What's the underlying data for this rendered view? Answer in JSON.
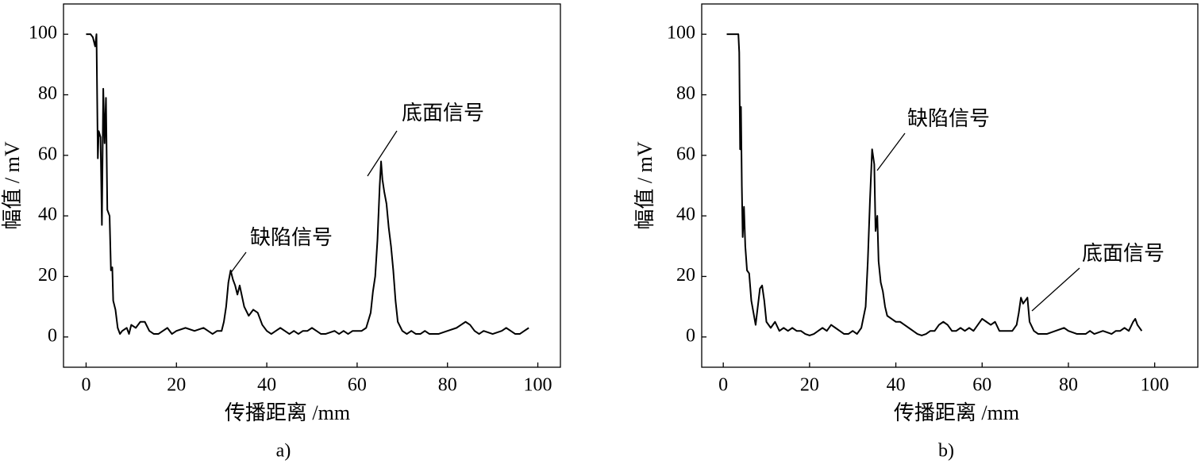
{
  "chart_data": [
    {
      "type": "line",
      "caption": "a)",
      "x_label": "传播距离 /mm",
      "y_label": "幅值 / mV",
      "color": "#000000",
      "xlim": [
        -5,
        105
      ],
      "ylim": [
        -10,
        110
      ],
      "xticks": [
        0,
        20,
        40,
        60,
        80,
        100
      ],
      "yticks": [
        0,
        20,
        40,
        60,
        80,
        100
      ],
      "annotations": [
        "底面信号",
        "缺陷信号"
      ],
      "x": [
        0,
        1,
        1.5,
        2,
        2.3,
        2.6,
        2.8,
        3.2,
        3.5,
        3.8,
        4.1,
        4.4,
        4.7,
        5.2,
        5.5,
        5.8,
        6,
        6.5,
        7,
        7.5,
        8,
        9,
        9.5,
        10,
        11,
        12,
        13,
        14,
        15,
        16,
        17,
        18,
        19,
        20,
        22,
        24,
        26,
        27,
        28,
        29,
        30,
        30.5,
        31,
        31.5,
        32,
        32.5,
        33,
        33.5,
        34,
        35,
        36,
        37,
        38,
        39,
        40,
        41,
        42,
        43,
        44,
        45,
        46,
        47,
        48,
        49,
        50,
        51,
        52,
        53,
        55,
        56,
        57,
        58,
        59,
        60,
        61,
        62,
        63,
        63.5,
        64,
        64.5,
        65,
        65.3,
        65.6,
        66,
        66.5,
        67,
        67.5,
        68,
        68.5,
        69,
        70,
        71,
        72,
        73,
        74,
        75,
        76,
        78,
        80,
        82,
        83,
        84,
        85,
        86,
        87,
        88,
        90,
        92,
        93,
        94,
        95,
        96,
        97,
        98
      ],
      "values": [
        100,
        100,
        99,
        96,
        100,
        59,
        68,
        66,
        37,
        82,
        64,
        79,
        42,
        40,
        22,
        23,
        12,
        9,
        3,
        1,
        2,
        3,
        1,
        4,
        3,
        5,
        5,
        2,
        1,
        1,
        2,
        3,
        1,
        2,
        3,
        2,
        3,
        2,
        1,
        2,
        2,
        5,
        10,
        18,
        22,
        19,
        17,
        14,
        17,
        10,
        7,
        9,
        8,
        4,
        2,
        1,
        2,
        3,
        2,
        1,
        2,
        1,
        2,
        2,
        3,
        2,
        1,
        1,
        2,
        1,
        2,
        1,
        2,
        2,
        2,
        3,
        8,
        15,
        20,
        32,
        50,
        58,
        52,
        48,
        44,
        36,
        30,
        22,
        12,
        5,
        2,
        1,
        2,
        1,
        1,
        2,
        1,
        1,
        2,
        3,
        4,
        5,
        4,
        2,
        1,
        2,
        1,
        2,
        3,
        2,
        1,
        1,
        2,
        3
      ]
    },
    {
      "type": "line",
      "caption": "b)",
      "x_label": "传播距离 /mm",
      "y_label": "幅值 / mV",
      "color": "#000000",
      "xlim": [
        -5,
        110
      ],
      "ylim": [
        -10,
        110
      ],
      "xticks": [
        0,
        20,
        40,
        60,
        80,
        100
      ],
      "yticks": [
        0,
        20,
        40,
        60,
        80,
        100
      ],
      "annotations": [
        "缺陷信号",
        "底面信号"
      ],
      "x": [
        0.8,
        2,
        3.5,
        3.7,
        3.9,
        4.1,
        4.3,
        4.5,
        4.8,
        5.1,
        5.5,
        6,
        6.5,
        7,
        7.5,
        8,
        8.5,
        9,
        9.5,
        10,
        11,
        12,
        13,
        14,
        15,
        16,
        17,
        18,
        19,
        20,
        21,
        22,
        23,
        24,
        25,
        26,
        27,
        28,
        29,
        30,
        31,
        32,
        33,
        33.5,
        34,
        34.5,
        35,
        35.3,
        35.7,
        36,
        36.5,
        37,
        37.5,
        38,
        39,
        40,
        41,
        42,
        43,
        44,
        45,
        46,
        47,
        48,
        49,
        50,
        51,
        52,
        53,
        54,
        55,
        56,
        57,
        58,
        59,
        60,
        61,
        62,
        63,
        64,
        65,
        66,
        67,
        68,
        68.5,
        69,
        69.5,
        70,
        70.5,
        71,
        72,
        73,
        75,
        77,
        79,
        80,
        82,
        84,
        85,
        86,
        88,
        90,
        91,
        92,
        93,
        94,
        95,
        95.5,
        96,
        97
      ],
      "values": [
        100,
        100,
        100,
        94,
        62,
        76,
        50,
        33,
        43,
        30,
        22,
        21,
        12,
        8,
        4,
        10,
        16,
        17,
        12,
        5,
        3,
        5,
        2,
        3,
        2,
        3,
        2,
        2,
        1,
        0.5,
        1,
        2,
        3,
        2,
        4,
        3,
        2,
        1,
        1,
        2,
        1,
        3,
        10,
        25,
        45,
        62,
        57,
        35,
        40,
        25,
        18,
        15,
        10,
        7,
        6,
        5,
        5,
        4,
        3,
        2,
        1,
        0.5,
        1,
        2,
        2,
        4,
        5,
        4,
        2,
        2,
        3,
        2,
        3,
        2,
        4,
        6,
        5,
        4,
        5,
        2,
        2,
        2,
        2,
        4,
        8,
        13,
        11,
        12,
        13,
        5,
        2,
        1,
        1,
        2,
        3,
        2,
        1,
        1,
        2,
        1,
        2,
        1,
        2,
        2,
        3,
        2,
        5,
        6,
        4,
        2
      ]
    }
  ]
}
